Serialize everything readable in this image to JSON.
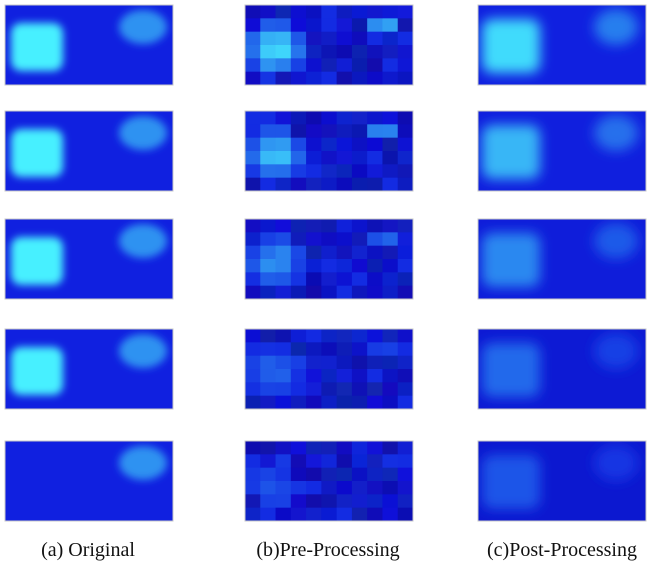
{
  "captions": [
    "(a) Original",
    "(b)Pre-Processing",
    "(c)Post-Processing"
  ]
}
